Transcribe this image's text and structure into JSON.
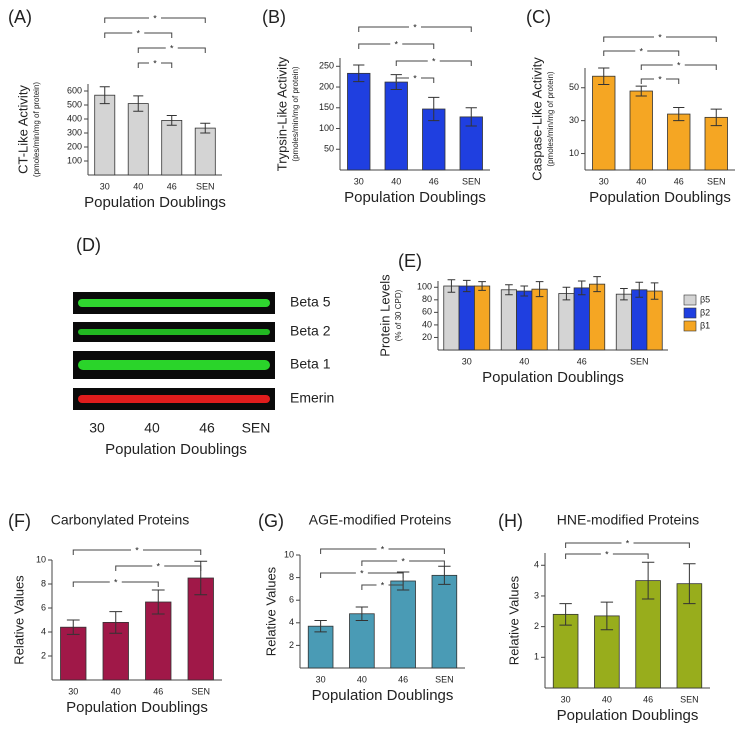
{
  "chart_data": [
    {
      "type": "bar",
      "panel": "(A)",
      "ylabel": "CT-Like Activity",
      "ysublabel": "(pmoles/min/mg of protein)",
      "xlabel": "Population Doublings",
      "categories": [
        "30",
        "40",
        "46",
        "SEN"
      ],
      "values": [
        570,
        510,
        390,
        335
      ],
      "errors": [
        60,
        55,
        35,
        35
      ],
      "color": "#d4d4d4",
      "ylim": [
        0,
        650
      ],
      "yticks": [
        100,
        200,
        300,
        400,
        500,
        600
      ],
      "brackets": [
        {
          "label": "*",
          "pair": [
            "30",
            "SEN"
          ]
        },
        {
          "label": "*",
          "pair": [
            "30",
            "46"
          ]
        },
        {
          "label": "*",
          "pair": [
            "40",
            "SEN"
          ]
        },
        {
          "label": "*",
          "pair": [
            "40",
            "46"
          ]
        }
      ]
    },
    {
      "type": "bar",
      "panel": "(B)",
      "ylabel": "Trypsin-Like Activity",
      "ysublabel": "(pmoles/min/mg of protein)",
      "xlabel": "Population Doublings",
      "categories": [
        "30",
        "40",
        "46",
        "SEN"
      ],
      "values": [
        233,
        212,
        147,
        128
      ],
      "errors": [
        20,
        18,
        28,
        22
      ],
      "color": "#1f3fe0",
      "ylim": [
        0,
        270
      ],
      "yticks": [
        50,
        100,
        150,
        200,
        250
      ],
      "brackets": [
        {
          "label": "*",
          "pair": [
            "30",
            "SEN"
          ]
        },
        {
          "label": "*",
          "pair": [
            "30",
            "46"
          ]
        },
        {
          "label": "*",
          "pair": [
            "40",
            "SEN"
          ]
        },
        {
          "label": "*",
          "pair": [
            "40",
            "46"
          ]
        }
      ]
    },
    {
      "type": "bar",
      "panel": "(C)",
      "ylabel": "Caspase-Like Activity",
      "ysublabel": "(pmoles/min/mg of protein)",
      "xlabel": "Population Doublings",
      "categories": [
        "30",
        "40",
        "46",
        "SEN"
      ],
      "values": [
        57,
        48,
        34,
        32
      ],
      "errors": [
        5,
        3,
        4,
        5
      ],
      "color": "#f5a623",
      "ylim": [
        0,
        62
      ],
      "yticks": [
        10,
        30,
        50
      ],
      "brackets": [
        {
          "label": "*",
          "pair": [
            "30",
            "SEN"
          ]
        },
        {
          "label": "*",
          "pair": [
            "30",
            "46"
          ]
        },
        {
          "label": "*",
          "pair": [
            "40",
            "SEN"
          ]
        },
        {
          "label": "*",
          "pair": [
            "40",
            "46"
          ]
        }
      ]
    },
    {
      "type": "grouped-bar",
      "panel": "(E)",
      "ylabel": "Protein Levels",
      "ysublabel": "(% of 30 CPD)",
      "xlabel": "Population Doublings",
      "categories": [
        "30",
        "40",
        "46",
        "SEN"
      ],
      "series": [
        {
          "name": "β5",
          "color": "#d4d4d4",
          "values": [
            102,
            96,
            90,
            89
          ],
          "errors": [
            10,
            8,
            10,
            9
          ]
        },
        {
          "name": "β2",
          "color": "#1f3fe0",
          "values": [
            102,
            94,
            99,
            96
          ],
          "errors": [
            9,
            8,
            11,
            12
          ]
        },
        {
          "name": "β1",
          "color": "#f5a623",
          "values": [
            102,
            97,
            105,
            94
          ],
          "errors": [
            7,
            12,
            12,
            13
          ]
        }
      ],
      "ylim": [
        0,
        110
      ],
      "yticks": [
        20,
        40,
        60,
        80,
        100
      ],
      "legend": "right"
    },
    {
      "type": "bar",
      "panel": "(F)",
      "title": "Carbonylated Proteins",
      "ylabel": "Relative Values",
      "xlabel": "Population Doublings",
      "categories": [
        "30",
        "40",
        "46",
        "SEN"
      ],
      "values": [
        4.4,
        4.8,
        6.5,
        8.5
      ],
      "errors": [
        0.6,
        0.9,
        1.0,
        1.4
      ],
      "color": "#a01848",
      "ylim": [
        0,
        10
      ],
      "yticks": [
        2,
        4,
        6,
        8,
        10
      ],
      "brackets": [
        {
          "label": "*",
          "pair": [
            "30",
            "SEN"
          ]
        },
        {
          "label": "*",
          "pair": [
            "40",
            "SEN"
          ]
        },
        {
          "label": "*",
          "pair": [
            "30",
            "46"
          ]
        }
      ]
    },
    {
      "type": "bar",
      "panel": "(G)",
      "title": "AGE-modified Proteins",
      "ylabel": "Relative Values",
      "xlabel": "Population Doublings",
      "categories": [
        "30",
        "40",
        "46",
        "SEN"
      ],
      "values": [
        3.7,
        4.8,
        7.7,
        8.2
      ],
      "errors": [
        0.5,
        0.6,
        0.8,
        0.8
      ],
      "color": "#4a9bb5",
      "ylim": [
        0,
        10
      ],
      "yticks": [
        2,
        4,
        6,
        8,
        10
      ],
      "brackets": [
        {
          "label": "*",
          "pair": [
            "30",
            "SEN"
          ]
        },
        {
          "label": "*",
          "pair": [
            "40",
            "SEN"
          ]
        },
        {
          "label": "*",
          "pair": [
            "30",
            "46"
          ]
        },
        {
          "label": "*",
          "pair": [
            "40",
            "46"
          ]
        }
      ]
    },
    {
      "type": "bar",
      "panel": "(H)",
      "title": "HNE-modified Proteins",
      "ylabel": "Relative Values",
      "xlabel": "Population Doublings",
      "categories": [
        "30",
        "40",
        "46",
        "SEN"
      ],
      "values": [
        2.4,
        2.35,
        3.5,
        3.4
      ],
      "errors": [
        0.35,
        0.45,
        0.6,
        0.65
      ],
      "color": "#98ad1c",
      "ylim": [
        0,
        4.4
      ],
      "yticks": [
        1,
        2,
        3,
        4
      ],
      "brackets": [
        {
          "label": "*",
          "pair": [
            "30",
            "SEN"
          ]
        },
        {
          "label": "*",
          "pair": [
            "30",
            "46"
          ]
        }
      ]
    }
  ],
  "blot": {
    "panel": "(D)",
    "rows": [
      "Beta 5",
      "Beta 2",
      "Beta 1",
      "Emerin"
    ],
    "categories": [
      "30",
      "40",
      "46",
      "SEN"
    ],
    "xlabel": "Population Doublings"
  }
}
